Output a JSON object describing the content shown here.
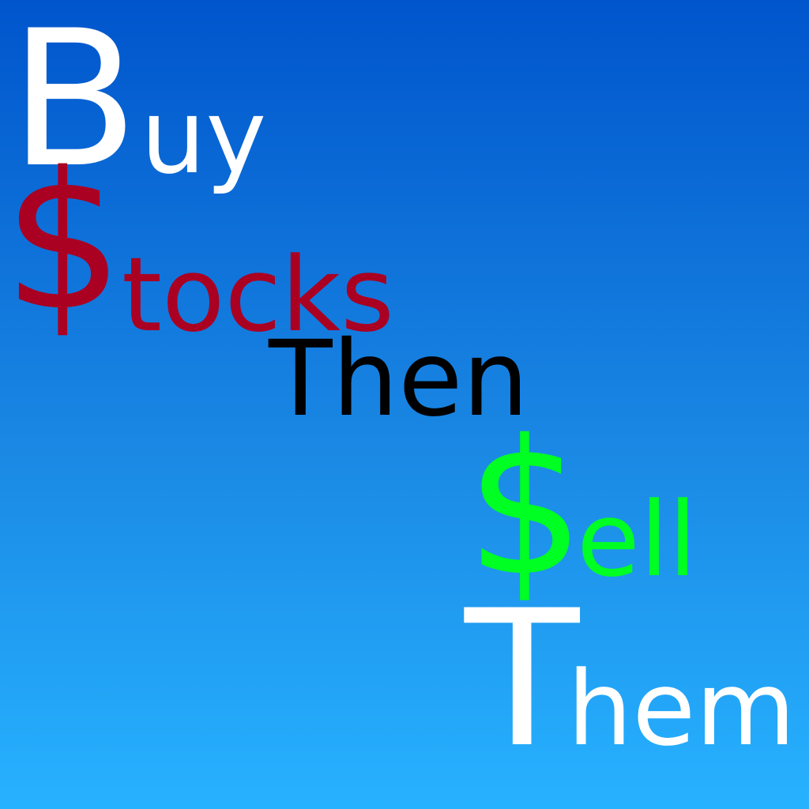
{
  "lines": [
    {
      "cap": "B",
      "rest": "uy",
      "color": "#ffffff"
    },
    {
      "cap": "$",
      "rest": "tocks",
      "color": "#aa0022"
    },
    {
      "text": "Then",
      "color": "#000000"
    },
    {
      "cap": "$",
      "rest": "ell",
      "color": "#00ff22"
    },
    {
      "cap": "T",
      "rest": "hem",
      "color": "#ffffff"
    }
  ],
  "background": {
    "top": "#0055cc",
    "bottom": "#27b2ff"
  }
}
